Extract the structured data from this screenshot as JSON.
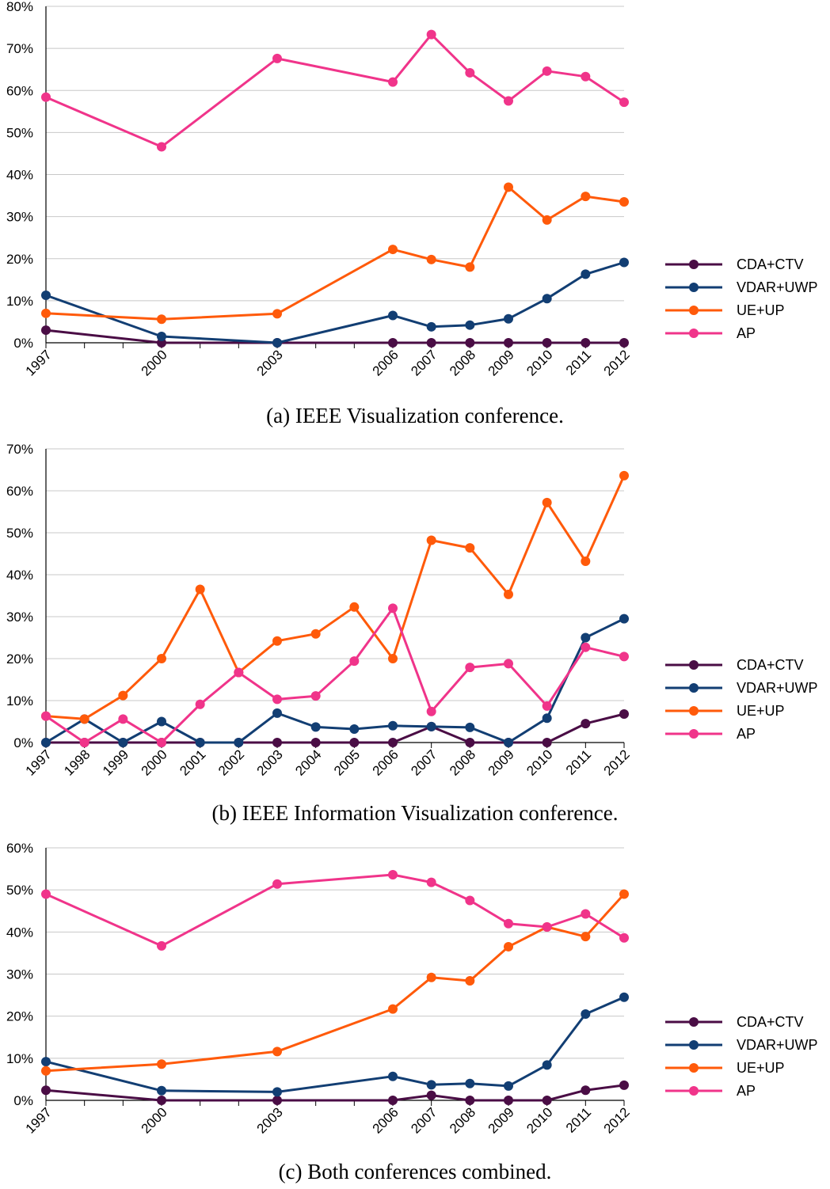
{
  "chart_data": [
    {
      "type": "line",
      "caption": "(a)  IEEE Visualization conference.",
      "x": [
        "1997",
        "2000",
        "2003",
        "2006",
        "2007",
        "2008",
        "2009",
        "2010",
        "2011",
        "2012"
      ],
      "x_years": [
        1997,
        2000,
        2003,
        2006,
        2007,
        2008,
        2009,
        2010,
        2011,
        2012
      ],
      "ylim": [
        0,
        80
      ],
      "yticks": [
        "0%",
        "10%",
        "20%",
        "30%",
        "40%",
        "50%",
        "60%",
        "70%",
        "80%"
      ],
      "grid": true,
      "legend_position": "right",
      "series": [
        {
          "name": "CDA+CTV",
          "color": "#4a0d45",
          "values": [
            3,
            0,
            0,
            0,
            0,
            0,
            0,
            0,
            0,
            0
          ]
        },
        {
          "name": "VDAR+UWP",
          "color": "#123e73",
          "values": [
            11.3,
            1.5,
            0,
            6.5,
            3.8,
            4.2,
            5.7,
            10.5,
            16.3,
            19.1
          ]
        },
        {
          "name": "UE+UP",
          "color": "#ff5a0a",
          "values": [
            7,
            5.6,
            6.9,
            22.2,
            19.8,
            18,
            37,
            29.2,
            34.8,
            33.5
          ]
        },
        {
          "name": "AP",
          "color": "#f0348a",
          "values": [
            58.4,
            46.6,
            67.6,
            62,
            73.3,
            64.2,
            57.5,
            64.6,
            63.3,
            57.2
          ]
        }
      ]
    },
    {
      "type": "line",
      "caption": "(b)  IEEE Information Visualization conference.",
      "x": [
        "1997",
        "1998",
        "1999",
        "2000",
        "2001",
        "2002",
        "2003",
        "2004",
        "2005",
        "2006",
        "2007",
        "2008",
        "2009",
        "2010",
        "2011",
        "2012"
      ],
      "x_years": [
        1997,
        1998,
        1999,
        2000,
        2001,
        2002,
        2003,
        2004,
        2005,
        2006,
        2007,
        2008,
        2009,
        2010,
        2011,
        2012
      ],
      "ylim": [
        0,
        70
      ],
      "yticks": [
        "0%",
        "10%",
        "20%",
        "30%",
        "40%",
        "50%",
        "60%",
        "70%"
      ],
      "grid": true,
      "legend_position": "right",
      "series": [
        {
          "name": "CDA+CTV",
          "color": "#4a0d45",
          "values": [
            0,
            0,
            0,
            0,
            0,
            0,
            0,
            0,
            0,
            0,
            3.8,
            0,
            0,
            0,
            4.5,
            6.8
          ]
        },
        {
          "name": "VDAR+UWP",
          "color": "#123e73",
          "values": [
            0,
            5.6,
            0,
            5,
            0,
            0,
            7,
            3.7,
            3.2,
            4,
            3.8,
            3.6,
            0,
            5.8,
            25,
            29.5
          ]
        },
        {
          "name": "UE+UP",
          "color": "#ff5a0a",
          "values": [
            6.3,
            5.6,
            11.2,
            20,
            36.5,
            16.7,
            24.2,
            25.9,
            32.3,
            20,
            48.2,
            46.4,
            35.3,
            57.2,
            43.2,
            63.6
          ]
        },
        {
          "name": "AP",
          "color": "#f0348a",
          "values": [
            6.3,
            0,
            5.6,
            0,
            9.1,
            16.7,
            10.3,
            11.1,
            19.4,
            32,
            7.4,
            17.9,
            18.8,
            8.7,
            22.7,
            20.5
          ]
        }
      ]
    },
    {
      "type": "line",
      "caption": "(c)  Both conferences combined.",
      "x": [
        "1997",
        "2000",
        "2003",
        "2006",
        "2007",
        "2008",
        "2009",
        "2010",
        "2011",
        "2012"
      ],
      "x_years": [
        1997,
        2000,
        2003,
        2006,
        2007,
        2008,
        2009,
        2010,
        2011,
        2012
      ],
      "ylim": [
        0,
        60
      ],
      "yticks": [
        "0%",
        "10%",
        "20%",
        "30%",
        "40%",
        "50%",
        "60%"
      ],
      "grid": true,
      "legend_position": "right",
      "series": [
        {
          "name": "CDA+CTV",
          "color": "#4a0d45",
          "values": [
            2.4,
            0,
            0,
            0,
            1.2,
            0,
            0,
            0,
            2.4,
            3.6
          ]
        },
        {
          "name": "VDAR+UWP",
          "color": "#123e73",
          "values": [
            9.2,
            2.3,
            2,
            5.7,
            3.7,
            4,
            3.4,
            8.4,
            20.5,
            24.5
          ]
        },
        {
          "name": "UE+UP",
          "color": "#ff5a0a",
          "values": [
            7,
            8.6,
            11.6,
            21.7,
            29.2,
            28.4,
            36.5,
            41.2,
            38.9,
            49
          ]
        },
        {
          "name": "AP",
          "color": "#f0348a",
          "values": [
            49,
            36.7,
            51.4,
            53.6,
            51.8,
            47.5,
            42,
            41.2,
            44.3,
            38.6
          ]
        }
      ]
    }
  ]
}
